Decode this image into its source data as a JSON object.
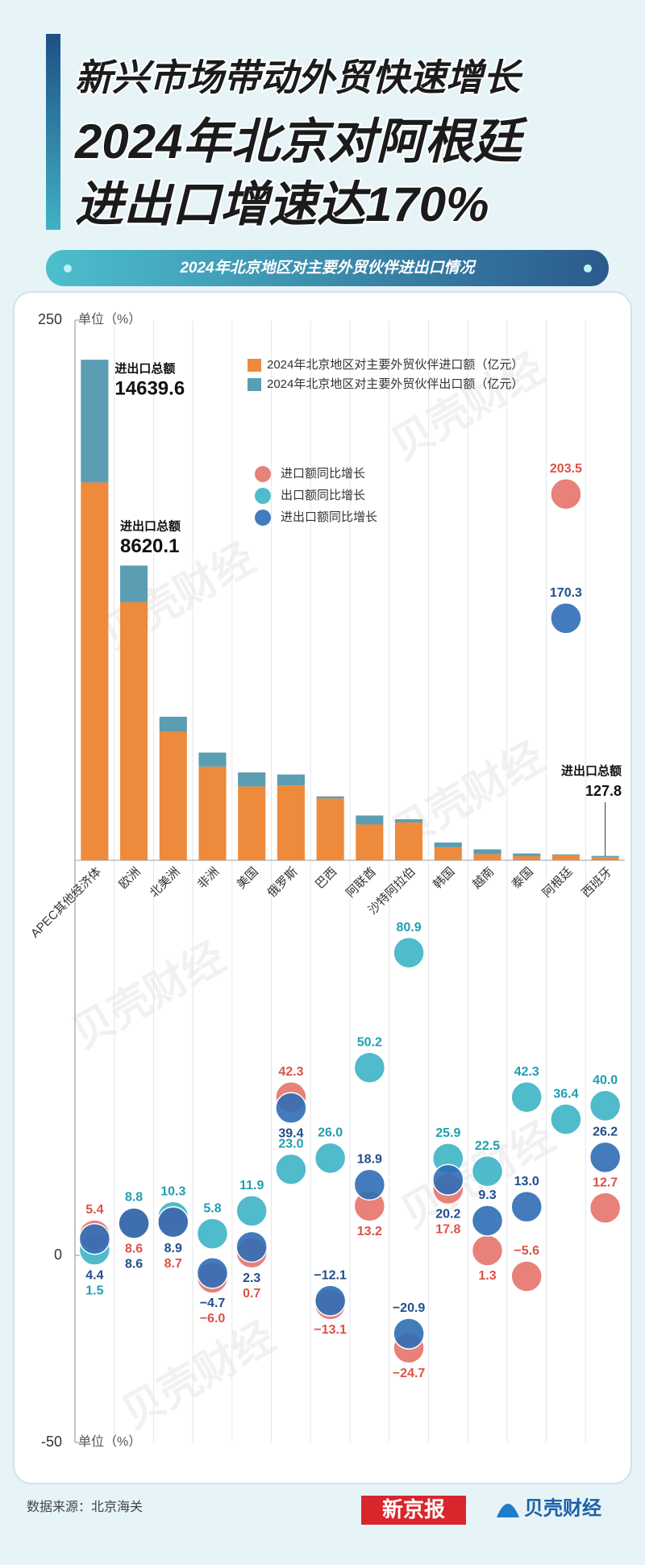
{
  "chart_data": {
    "type": "bar",
    "title": [
      "新兴市场带动外贸快速增长",
      "2024年北京对阿根廷",
      "进出口增速达170%"
    ],
    "subtitle": "2024年北京地区对主要外贸伙伴进出口情况",
    "ylabel": "单位（%）",
    "categories": [
      "APEC其他经济体",
      "欧洲",
      "北美洲",
      "非洲",
      "美国",
      "俄罗斯",
      "巴西",
      "阿联酋",
      "沙特阿拉伯",
      "韩国",
      "越南",
      "泰国",
      "阿根廷",
      "西班牙"
    ],
    "ylim": [
      -50,
      250
    ],
    "yticks": [
      250,
      0,
      -50
    ],
    "y2lim": [
      0,
      15800
    ],
    "grid": true,
    "series": [
      {
        "name": "2024年北京地区对主要外贸伙伴进口额（亿元）",
        "type": "bar",
        "axis": "y2",
        "color": "#ee8a3c",
        "values": [
          11050,
          7550,
          3760,
          2740,
          2160,
          2190,
          1810,
          1050,
          1110,
          380,
          180,
          120,
          150,
          90
        ]
      },
      {
        "name": "2024年北京地区对主要外贸伙伴出口额（亿元）",
        "type": "bar",
        "axis": "y2",
        "color": "#5b9db2",
        "values": [
          3589.6,
          1070.1,
          440,
          410,
          410,
          320,
          60,
          260,
          90,
          140,
          140,
          80,
          25,
          37.8
        ]
      },
      {
        "name": "进口额同比增长",
        "type": "scatter",
        "color": "#e5736a",
        "label_color": "#dd5148",
        "values": [
          5.4,
          8.6,
          8.7,
          -6.0,
          0.7,
          42.3,
          -13.1,
          13.2,
          -24.7,
          17.8,
          1.3,
          -5.6,
          203.5,
          12.7
        ],
        "value_labels": [
          "5.4",
          "8.6",
          "8.7",
          "−6.0",
          "0.7",
          "42.3",
          "−13.1",
          "13.2",
          "−24.7",
          "17.8",
          "1.3",
          "−5.6",
          "203.5",
          "12.7"
        ]
      },
      {
        "name": "出口额同比增长",
        "type": "scatter",
        "color": "#3db4c4",
        "label_color": "#1f9fb0",
        "values": [
          1.5,
          8.8,
          10.3,
          5.8,
          11.9,
          23.0,
          26.0,
          50.2,
          80.9,
          25.9,
          22.5,
          42.3,
          36.4,
          40.0
        ],
        "value_labels": [
          "1.5",
          "8.8",
          "10.3",
          "5.8",
          "11.9",
          "23.0",
          "26.0",
          "50.2",
          "80.9",
          "25.9",
          "22.5",
          "42.3",
          "36.4",
          "40.0"
        ]
      },
      {
        "name": "进出口额同比增长",
        "type": "scatter",
        "color": "#2f6db5",
        "label_color": "#224e8c",
        "values": [
          4.4,
          8.6,
          8.9,
          -4.7,
          2.3,
          39.4,
          -12.1,
          18.9,
          -20.9,
          20.2,
          9.3,
          13.0,
          170.3,
          26.2
        ],
        "value_labels": [
          "4.4",
          "8.6",
          "8.9",
          "−4.7",
          "2.3",
          "39.4",
          "−12.1",
          "18.9",
          "−20.9",
          "20.2",
          "9.3",
          "13.0",
          "170.3",
          "26.2"
        ]
      }
    ],
    "annotations": [
      {
        "text": "进出口总额",
        "value": 14639.6,
        "category": "APEC其他经济体"
      },
      {
        "text": "进出口总额",
        "value": 8620.1,
        "category": "欧洲"
      },
      {
        "text": "进出口总额",
        "value": 127.8,
        "category": "西班牙"
      }
    ]
  },
  "source": "数据来源：北京海关",
  "logos": [
    "新京报",
    "贝壳财经"
  ],
  "watermark": "贝壳财经"
}
